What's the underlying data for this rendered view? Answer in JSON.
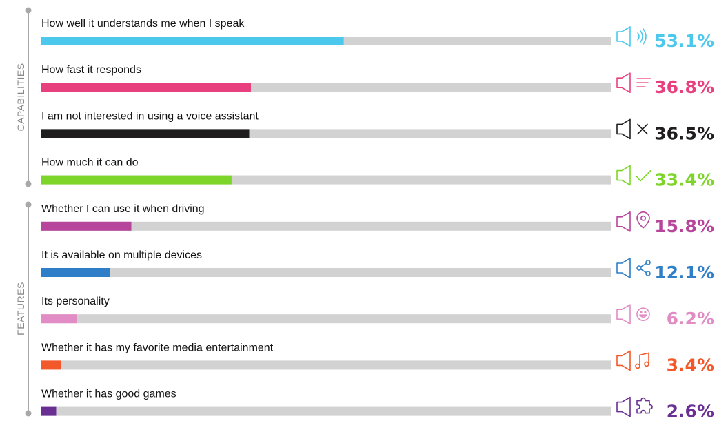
{
  "chart_data": {
    "type": "bar",
    "orientation": "horizontal",
    "xlim": [
      0,
      100
    ],
    "grid": false,
    "groups": [
      {
        "label": "CAPABILITIES",
        "items": [
          0,
          1,
          2,
          3
        ]
      },
      {
        "label": "FEATURES",
        "items": [
          4,
          5,
          6,
          7,
          8
        ]
      }
    ],
    "items": [
      {
        "label": "How well it understands me when I speak",
        "value": 53.1,
        "value_label": "53.1%",
        "color": "#4cc8ec",
        "icon": "speaker-sound-waves-icon"
      },
      {
        "label": "How fast it responds",
        "value": 36.8,
        "value_label": "36.8%",
        "color": "#e8407e",
        "icon": "speaker-fast-lines-icon"
      },
      {
        "label": "I am not interested in using a voice assistant",
        "value": 36.5,
        "value_label": "36.5%",
        "color": "#1f1d1e",
        "icon": "speaker-muted-x-icon"
      },
      {
        "label": "How much it can do",
        "value": 33.4,
        "value_label": "33.4%",
        "color": "#7ed52a",
        "icon": "speaker-checkmark-icon"
      },
      {
        "label": "Whether I can use it when driving",
        "value": 15.8,
        "value_label": "15.8%",
        "color": "#b8459c",
        "icon": "speaker-location-pin-icon"
      },
      {
        "label": "It is available on multiple devices",
        "value": 12.1,
        "value_label": "12.1%",
        "color": "#2e7fc7",
        "icon": "speaker-share-icon"
      },
      {
        "label": "Its personality",
        "value": 6.2,
        "value_label": "6.2%",
        "color": "#e18cc4",
        "icon": "speaker-smiley-icon"
      },
      {
        "label": "Whether it has my  favorite media entertainment",
        "value": 3.4,
        "value_label": "3.4%",
        "color": "#f2582a",
        "icon": "speaker-music-note-icon"
      },
      {
        "label": "Whether it has good games",
        "value": 2.6,
        "value_label": "2.6%",
        "color": "#6a2f93",
        "icon": "speaker-puzzle-icon"
      }
    ]
  },
  "colors": {
    "track": "#d2d2d2",
    "bracket": "#a8a8a8",
    "group_label": "#8a8a8a"
  }
}
